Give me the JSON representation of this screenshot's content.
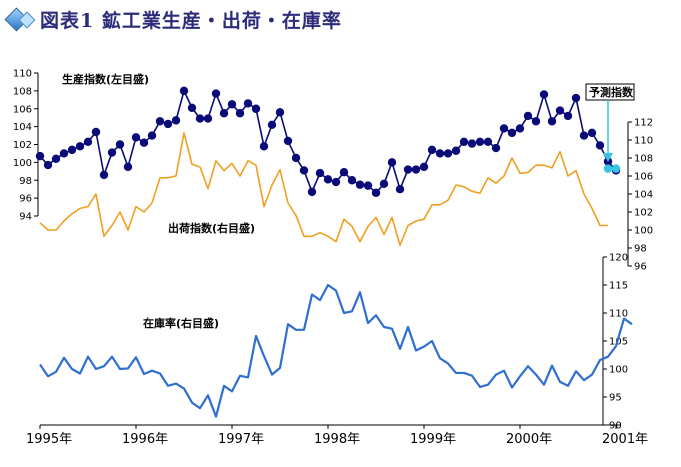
{
  "header": {
    "title": "図表1 鉱工業生産・出荷・在庫率"
  },
  "chart_data": {
    "type": "line",
    "x_axis": {
      "ticks": [
        "1995年",
        "1996年",
        "1997年",
        "1998年",
        "1999年",
        "2000年",
        "2001年"
      ],
      "range": [
        1995.0,
        2001.0
      ]
    },
    "forecast_label": "予測指数",
    "colors": {
      "production": "#0a0a78",
      "forecast": "#35c3e6",
      "shipment": "#f0a020",
      "inventory": "#2f6fd0"
    },
    "series": [
      {
        "name": "生産指数(左目盛)",
        "key": "production",
        "axis": "left-top",
        "ylim": [
          94,
          110
        ],
        "yticks": [
          "94",
          "96",
          "98",
          "100",
          "102",
          "104",
          "106",
          "108",
          "110"
        ],
        "start": 1995.0,
        "step": 0.0833333,
        "values": [
          100.7,
          99.7,
          100.4,
          101.0,
          101.4,
          101.8,
          102.3,
          103.4,
          98.6,
          101.1,
          102.0,
          99.5,
          102.8,
          102.2,
          103.0,
          104.6,
          104.3,
          104.7,
          108.0,
          106.1,
          104.9,
          104.9,
          107.7,
          105.5,
          106.5,
          105.5,
          106.6,
          106.0,
          101.8,
          104.2,
          105.6,
          102.4,
          100.5,
          99.1,
          96.7,
          98.8,
          98.1,
          97.8,
          98.9,
          98.0,
          97.5,
          97.4,
          96.6,
          97.6,
          100.0,
          97.0,
          99.2,
          99.2,
          99.5,
          101.4,
          101.0,
          101.0,
          101.3,
          102.3,
          102.1,
          102.3,
          102.3,
          101.6,
          103.8,
          103.3,
          103.8,
          105.2,
          104.6,
          107.6,
          104.6,
          105.8,
          105.2,
          107.2,
          103.0,
          103.3,
          101.9,
          100.1,
          99.1
        ]
      },
      {
        "name": "予測指数",
        "key": "forecast",
        "axis": "left-top",
        "start": 2000.9167,
        "step": 0.0833333,
        "values": [
          99.3,
          99.3
        ]
      },
      {
        "name": "出荷指数(右目盛)",
        "key": "shipment",
        "axis": "right-middle",
        "ylim": [
          96,
          112
        ],
        "yticks": [
          "96",
          "98",
          "100",
          "102",
          "104",
          "106",
          "108",
          "110",
          "112"
        ],
        "start": 1995.0,
        "step": 0.0833333,
        "values": [
          100.8,
          100.0,
          100.0,
          101.0,
          101.8,
          102.4,
          102.6,
          104.0,
          99.3,
          100.5,
          102.0,
          100.0,
          102.6,
          102.0,
          103.0,
          105.8,
          105.8,
          106.0,
          110.8,
          107.3,
          107.0,
          104.6,
          107.7,
          106.6,
          107.4,
          106.0,
          107.7,
          107.2,
          102.6,
          105.0,
          106.7,
          103.0,
          101.6,
          99.3,
          99.3,
          99.7,
          99.3,
          98.7,
          101.2,
          100.4,
          98.7,
          100.4,
          101.4,
          99.5,
          101.4,
          98.3,
          100.5,
          101.0,
          101.2,
          102.8,
          102.8,
          103.3,
          105.0,
          104.8,
          104.3,
          104.1,
          105.8,
          105.2,
          106.0,
          108.0,
          106.3,
          106.4,
          107.2,
          107.2,
          106.9,
          108.7,
          106.0,
          106.6,
          104.0,
          102.4,
          100.5,
          100.5
        ]
      },
      {
        "name": "在庫率(右目盛)",
        "key": "inventory",
        "axis": "right-bottom",
        "ylim": [
          90,
          120
        ],
        "yticks": [
          "90",
          "95",
          "100",
          "105",
          "110",
          "115",
          "120"
        ],
        "start": 1995.0,
        "step": 0.0833333,
        "values": [
          100.8,
          98.7,
          99.5,
          102.0,
          100.0,
          99.2,
          102.2,
          100.0,
          100.5,
          102.2,
          100.0,
          100.1,
          102.1,
          99.1,
          99.7,
          99.2,
          97.0,
          97.4,
          96.5,
          94.0,
          93.0,
          95.3,
          91.5,
          97.0,
          96.0,
          98.8,
          98.5,
          105.9,
          102.3,
          99.0,
          100.2,
          108.0,
          107.0,
          107.0,
          113.3,
          112.3,
          115.0,
          114.0,
          110.0,
          110.3,
          113.7,
          108.2,
          109.6,
          107.5,
          107.2,
          103.6,
          107.5,
          103.3,
          104.0,
          105.0,
          101.9,
          101.0,
          99.3,
          99.3,
          98.8,
          96.8,
          97.2,
          99.0,
          99.7,
          96.7,
          98.7,
          100.5,
          99.0,
          97.2,
          100.6,
          97.7,
          97.0,
          99.6,
          98.0,
          99.0,
          101.6,
          102.2,
          104.1,
          109.0,
          108.0
        ]
      }
    ]
  }
}
